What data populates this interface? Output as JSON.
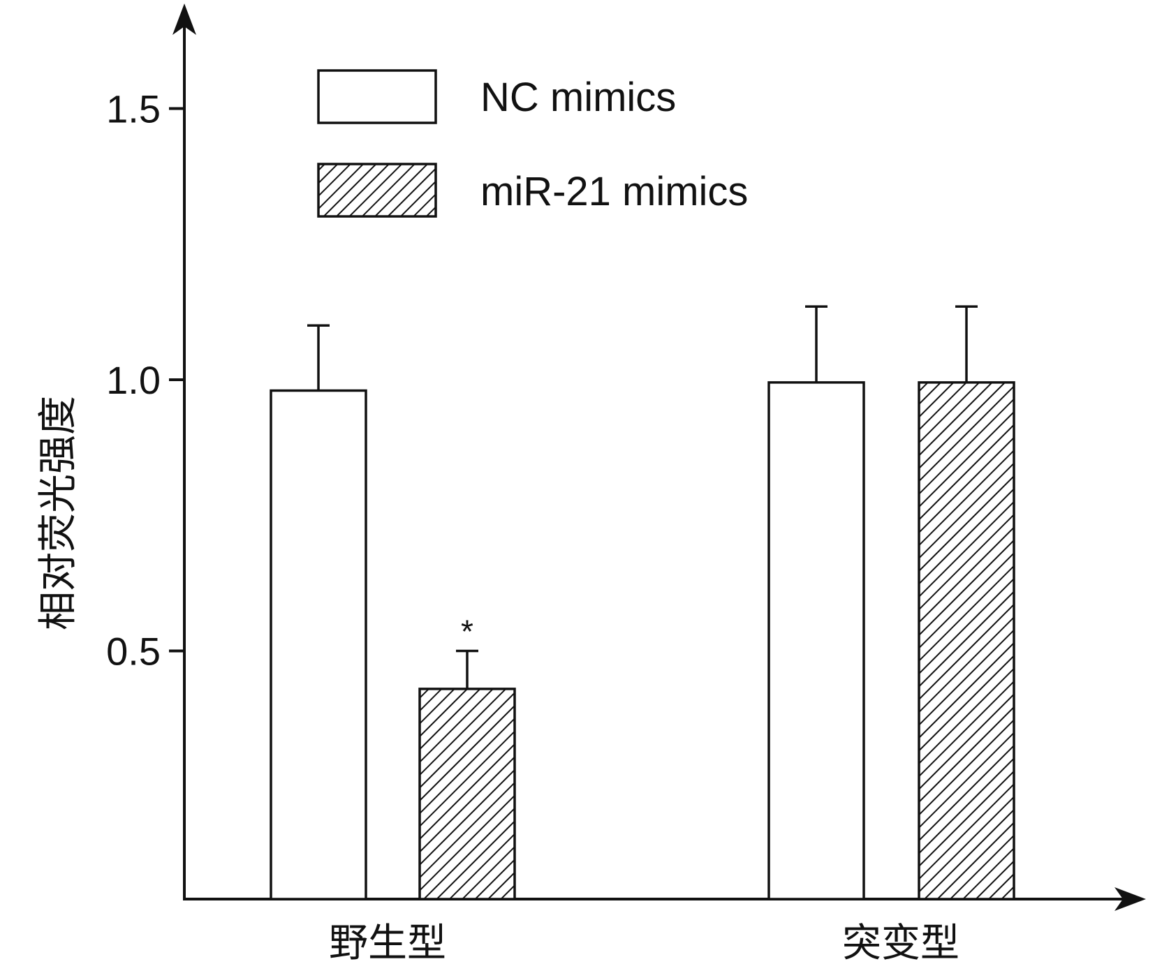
{
  "chart_data": {
    "type": "bar",
    "title": "",
    "xlabel": "",
    "ylabel": "相对荧光强度",
    "ylim": [
      0.05,
      1.65
    ],
    "yticks": [
      "0.5",
      "1.0",
      "1.5"
    ],
    "categories": [
      "野生型",
      "突变型"
    ],
    "series": [
      {
        "name": "NC mimics",
        "pattern": "none",
        "values": [
          0.98,
          0.995
        ],
        "errors": [
          0.12,
          0.14
        ]
      },
      {
        "name": "miR-21 mimics",
        "pattern": "diagonal-hatch",
        "values": [
          0.43,
          0.995
        ],
        "errors": [
          0.07,
          0.14
        ]
      }
    ],
    "annotations": [
      {
        "text": "*",
        "category": "野生型",
        "series": "miR-21 mimics"
      }
    ],
    "legend_position": "top-left",
    "grid": false,
    "colors": {
      "line": "#111111",
      "fill": "#ffffff"
    }
  }
}
